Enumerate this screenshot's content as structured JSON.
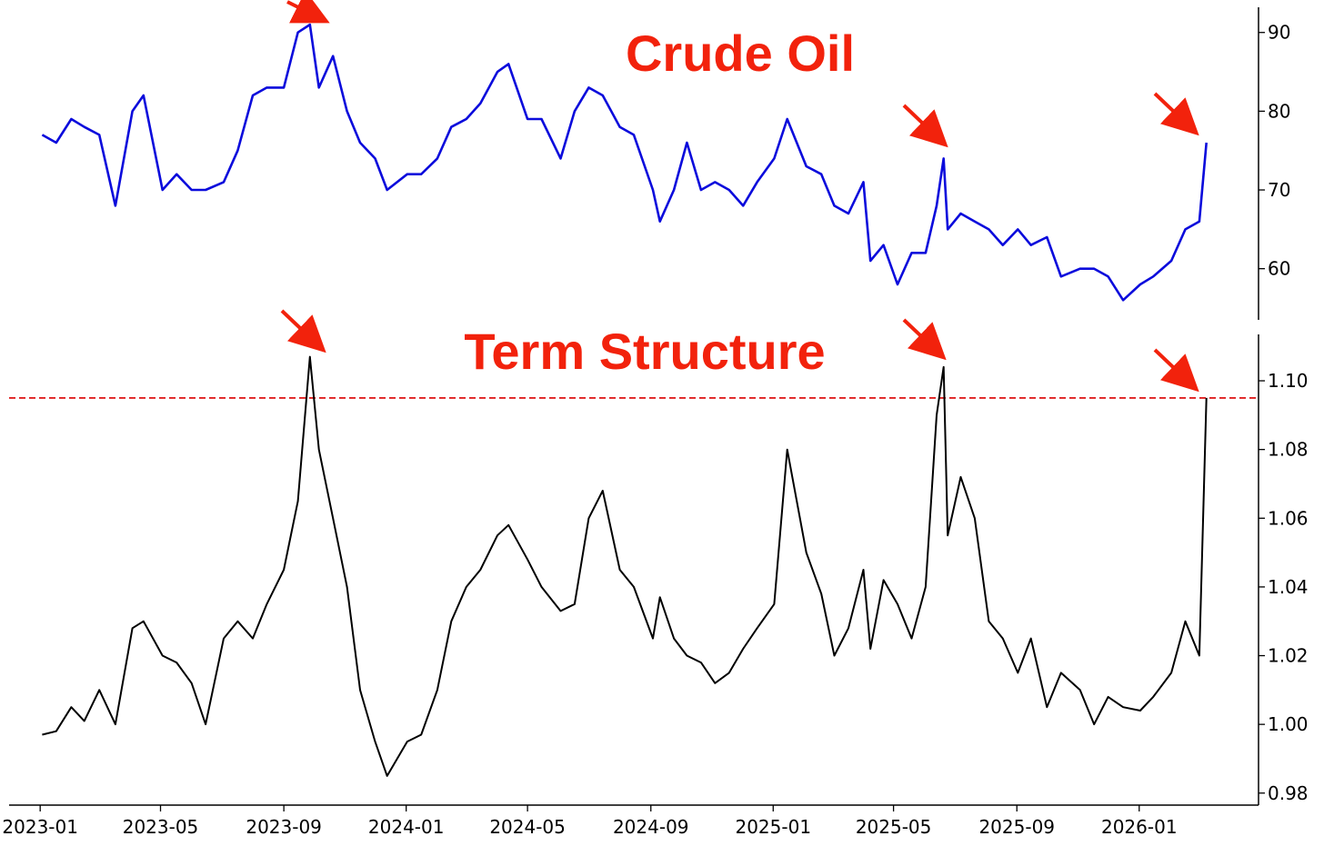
{
  "colors": {
    "oil_line": "#0b0bdc",
    "term_line": "#000000",
    "annotation": "#f2220c",
    "threshold": "#e02020"
  },
  "chart_data": [
    {
      "type": "line",
      "title": "Crude Oil",
      "xlabel": "",
      "ylabel": "",
      "x_ticks": [],
      "y_ticks": [
        60,
        70,
        80,
        90
      ],
      "ylim": [
        53.5,
        93.2
      ],
      "xlim": [
        "2022-12-01",
        "2026-04-30"
      ],
      "y_axis_side": "right",
      "grid": false,
      "series": [
        {
          "x": [
            "2023-01-03",
            "2023-01-17",
            "2023-02-01",
            "2023-02-14",
            "2023-03-01",
            "2023-03-17",
            "2023-04-03",
            "2023-04-14",
            "2023-05-03",
            "2023-05-17",
            "2023-06-01",
            "2023-06-15",
            "2023-07-03",
            "2023-07-17",
            "2023-08-01",
            "2023-08-15",
            "2023-09-01",
            "2023-09-15",
            "2023-09-27",
            "2023-10-06",
            "2023-10-20",
            "2023-11-03",
            "2023-11-16",
            "2023-12-01",
            "2023-12-13",
            "2024-01-02",
            "2024-01-16",
            "2024-02-01",
            "2024-02-15",
            "2024-03-01",
            "2024-03-15",
            "2024-04-01",
            "2024-04-12",
            "2024-05-01",
            "2024-05-15",
            "2024-06-03",
            "2024-06-17",
            "2024-07-01",
            "2024-07-15",
            "2024-08-01",
            "2024-08-15",
            "2024-09-03",
            "2024-09-10",
            "2024-09-24",
            "2024-10-07",
            "2024-10-21",
            "2024-11-04",
            "2024-11-18",
            "2024-12-02",
            "2024-12-16",
            "2025-01-02",
            "2025-01-15",
            "2025-02-03",
            "2025-02-18",
            "2025-03-03",
            "2025-03-17",
            "2025-04-01",
            "2025-04-08",
            "2025-04-21",
            "2025-05-05",
            "2025-05-19",
            "2025-06-02",
            "2025-06-13",
            "2025-06-20",
            "2025-06-24",
            "2025-07-07",
            "2025-07-21",
            "2025-08-04",
            "2025-08-18",
            "2025-09-02",
            "2025-09-15",
            "2025-10-01",
            "2025-10-15",
            "2025-11-03",
            "2025-11-17",
            "2025-12-01",
            "2025-12-16",
            "2026-01-02",
            "2026-01-15",
            "2026-02-02",
            "2026-02-16",
            "2026-03-02",
            "2026-03-09"
          ],
          "y": [
            77,
            76,
            79,
            78,
            77,
            68,
            80,
            82,
            70,
            72,
            70,
            70,
            71,
            75,
            82,
            83,
            83,
            90,
            91,
            83,
            87,
            80,
            76,
            74,
            70,
            72,
            72,
            74,
            78,
            79,
            81,
            85,
            86,
            79,
            79,
            74,
            80,
            83,
            82,
            78,
            77,
            70,
            66,
            70,
            76,
            70,
            71,
            70,
            68,
            71,
            74,
            79,
            73,
            72,
            68,
            67,
            71,
            61,
            63,
            58,
            62,
            62,
            68,
            74,
            65,
            67,
            66,
            65,
            63,
            65,
            63,
            64,
            59,
            60,
            60,
            59,
            56,
            58,
            59,
            61,
            65,
            66,
            76
          ]
        }
      ]
    },
    {
      "type": "line",
      "title": "Term Structure",
      "xlabel": "",
      "ylabel": "",
      "x_ticks": [
        "2023-01",
        "2023-05",
        "2023-09",
        "2024-01",
        "2024-05",
        "2024-09",
        "2025-01",
        "2025-05",
        "2025-09",
        "2026-01"
      ],
      "y_ticks": [
        0.98,
        1.0,
        1.02,
        1.04,
        1.06,
        1.08,
        1.1
      ],
      "ylim": [
        0.9765,
        1.1135
      ],
      "xlim": [
        "2022-12-01",
        "2026-04-30"
      ],
      "y_axis_side": "right",
      "grid": false,
      "threshold_line": 1.095,
      "series": [
        {
          "x": [
            "2023-01-03",
            "2023-01-17",
            "2023-02-01",
            "2023-02-14",
            "2023-03-01",
            "2023-03-17",
            "2023-04-03",
            "2023-04-14",
            "2023-05-03",
            "2023-05-17",
            "2023-06-01",
            "2023-06-15",
            "2023-07-03",
            "2023-07-17",
            "2023-08-01",
            "2023-08-15",
            "2023-09-01",
            "2023-09-15",
            "2023-09-27",
            "2023-10-06",
            "2023-10-20",
            "2023-11-03",
            "2023-11-16",
            "2023-12-01",
            "2023-12-13",
            "2024-01-02",
            "2024-01-16",
            "2024-02-01",
            "2024-02-15",
            "2024-03-01",
            "2024-03-15",
            "2024-04-01",
            "2024-04-12",
            "2024-05-01",
            "2024-05-15",
            "2024-06-03",
            "2024-06-17",
            "2024-07-01",
            "2024-07-15",
            "2024-08-01",
            "2024-08-15",
            "2024-09-03",
            "2024-09-10",
            "2024-09-24",
            "2024-10-07",
            "2024-10-21",
            "2024-11-04",
            "2024-11-18",
            "2024-12-02",
            "2024-12-16",
            "2025-01-02",
            "2025-01-15",
            "2025-02-03",
            "2025-02-18",
            "2025-03-03",
            "2025-03-17",
            "2025-04-01",
            "2025-04-08",
            "2025-04-21",
            "2025-05-05",
            "2025-05-19",
            "2025-06-02",
            "2025-06-13",
            "2025-06-20",
            "2025-06-24",
            "2025-07-07",
            "2025-07-21",
            "2025-08-04",
            "2025-08-18",
            "2025-09-02",
            "2025-09-15",
            "2025-10-01",
            "2025-10-15",
            "2025-11-03",
            "2025-11-17",
            "2025-12-01",
            "2025-12-16",
            "2026-01-02",
            "2026-01-15",
            "2026-02-02",
            "2026-02-16",
            "2026-03-02",
            "2026-03-09"
          ],
          "y": [
            0.997,
            0.998,
            1.005,
            1.001,
            1.01,
            1.0,
            1.028,
            1.03,
            1.02,
            1.018,
            1.012,
            1.0,
            1.025,
            1.03,
            1.025,
            1.035,
            1.045,
            1.065,
            1.107,
            1.08,
            1.06,
            1.04,
            1.01,
            0.995,
            0.985,
            0.995,
            0.997,
            1.01,
            1.03,
            1.04,
            1.045,
            1.055,
            1.058,
            1.048,
            1.04,
            1.033,
            1.035,
            1.06,
            1.068,
            1.045,
            1.04,
            1.025,
            1.037,
            1.025,
            1.02,
            1.018,
            1.012,
            1.015,
            1.022,
            1.028,
            1.035,
            1.08,
            1.05,
            1.038,
            1.02,
            1.028,
            1.045,
            1.022,
            1.042,
            1.035,
            1.025,
            1.04,
            1.09,
            1.104,
            1.055,
            1.072,
            1.06,
            1.03,
            1.025,
            1.015,
            1.025,
            1.005,
            1.015,
            1.01,
            1.0,
            1.008,
            1.005,
            1.004,
            1.008,
            1.015,
            1.03,
            1.02,
            1.095
          ]
        }
      ]
    }
  ]
}
